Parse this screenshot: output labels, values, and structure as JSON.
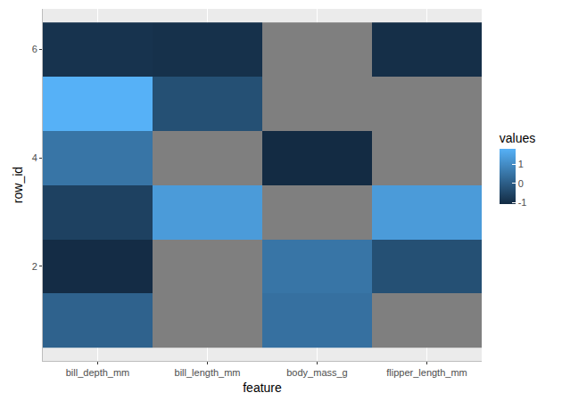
{
  "chart_data": {
    "type": "heatmap",
    "x_label": "feature",
    "y_label": "row_id",
    "categories": [
      "bill_depth_mm",
      "bill_length_mm",
      "body_mass_g",
      "flipper_length_mm"
    ],
    "rows": [
      1,
      2,
      3,
      4,
      5,
      6
    ],
    "cells": [
      [
        0.1,
        null,
        0.4,
        null
      ],
      [
        -1.05,
        null,
        0.5,
        -0.3
      ],
      [
        -0.6,
        1.3,
        null,
        1.3
      ],
      [
        0.5,
        null,
        -1.08,
        null
      ],
      [
        1.78,
        -0.3,
        null,
        null
      ],
      [
        -0.9,
        -0.95,
        null,
        -1.0
      ]
    ],
    "ylim": [
      0.25,
      6.75
    ],
    "yticks": [
      2,
      4,
      6
    ],
    "colorbar": {
      "title": "values",
      "range": [
        -1.08,
        1.78
      ],
      "ticks": [
        -1,
        0,
        1
      ]
    },
    "colors": [
      "#132B43",
      "#56B1F7"
    ],
    "grid": true
  }
}
